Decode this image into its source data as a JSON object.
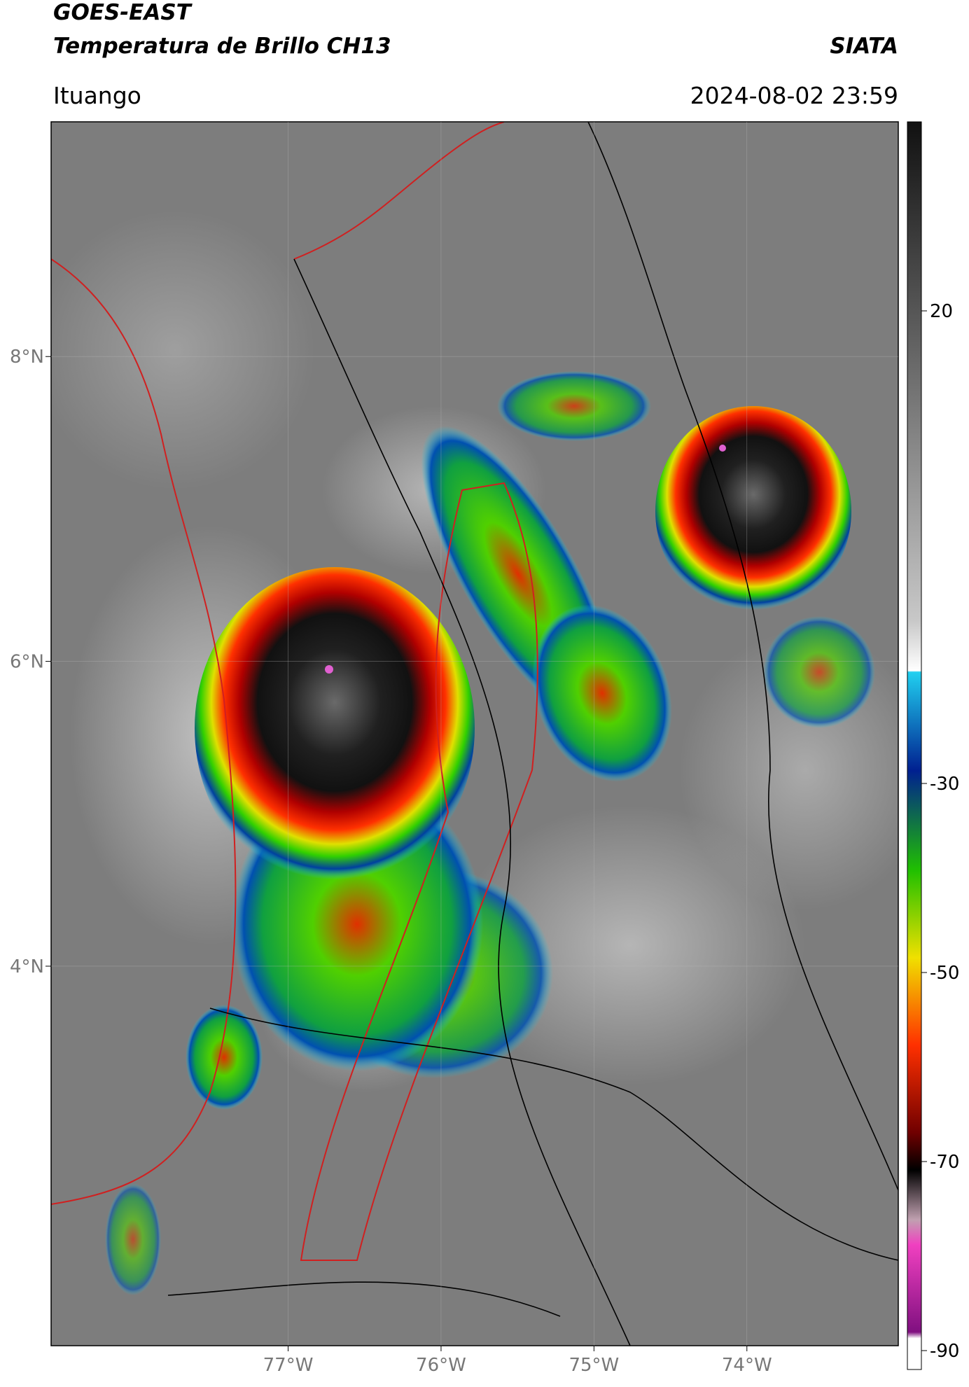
{
  "header": {
    "line1": "GOES-EAST",
    "line2": "Temperatura de Brillo CH13",
    "org": "SIATA",
    "place": "Ituango",
    "datetime": "2024-08-02 23:59"
  },
  "map": {
    "xlim": [
      -78.55,
      -73.01
    ],
    "ylim": [
      1.51,
      9.54
    ],
    "xticks": [
      {
        "value": -77,
        "label": "77°W"
      },
      {
        "value": -76,
        "label": "76°W"
      },
      {
        "value": -75,
        "label": "75°W"
      },
      {
        "value": -74,
        "label": "74°W"
      }
    ],
    "yticks": [
      {
        "value": 8,
        "label": "8°N"
      },
      {
        "value": 6,
        "label": "6°N"
      },
      {
        "value": 4,
        "label": "4°N"
      }
    ]
  },
  "colorbar": {
    "lim": [
      40,
      -92
    ],
    "ticks": [
      20,
      -30,
      -50,
      -70,
      -90
    ]
  }
}
